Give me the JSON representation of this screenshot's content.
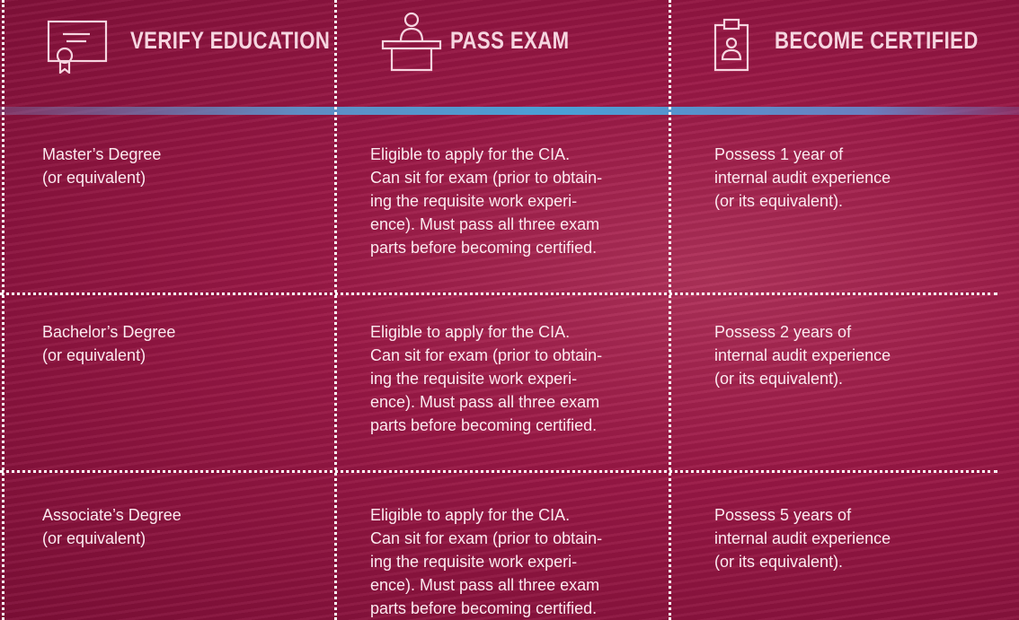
{
  "header": {
    "columns": [
      "VERIFY EDUCATION",
      "PASS EXAM",
      "BECOME CERTIFIED"
    ]
  },
  "table": {
    "rows": [
      [
        [
          "Master’s Degree",
          "(or equivalent)"
        ],
        [
          "Eligible to apply for the CIA.",
          "Can sit for exam (prior to obtain-",
          "ing the requisite work experi-",
          "ence). Must pass all three exam",
          "parts before becoming certified."
        ],
        [
          "Possess 1 year of",
          "internal audit experience",
          "(or its equivalent)."
        ]
      ],
      [
        [
          "Bachelor’s Degree",
          "(or equivalent)"
        ],
        [
          "Eligible to apply for the CIA.",
          "Can sit for exam (prior to obtain-",
          "ing the requisite work experi-",
          "ence). Must pass all three exam",
          "parts before becoming certified."
        ],
        [
          "Possess 2 years of",
          "internal audit experience",
          "(or its equivalent)."
        ]
      ],
      [
        [
          "Associate’s Degree",
          "(or equivalent)"
        ],
        [
          "Eligible to apply for the CIA.",
          "Can sit for exam (prior to obtain-",
          "ing the requisite work experi-",
          "ence). Must pass all three exam",
          "parts before becoming certified."
        ],
        [
          "Possess 5 years of",
          "internal audit experience",
          "(or its equivalent)."
        ]
      ]
    ]
  }
}
